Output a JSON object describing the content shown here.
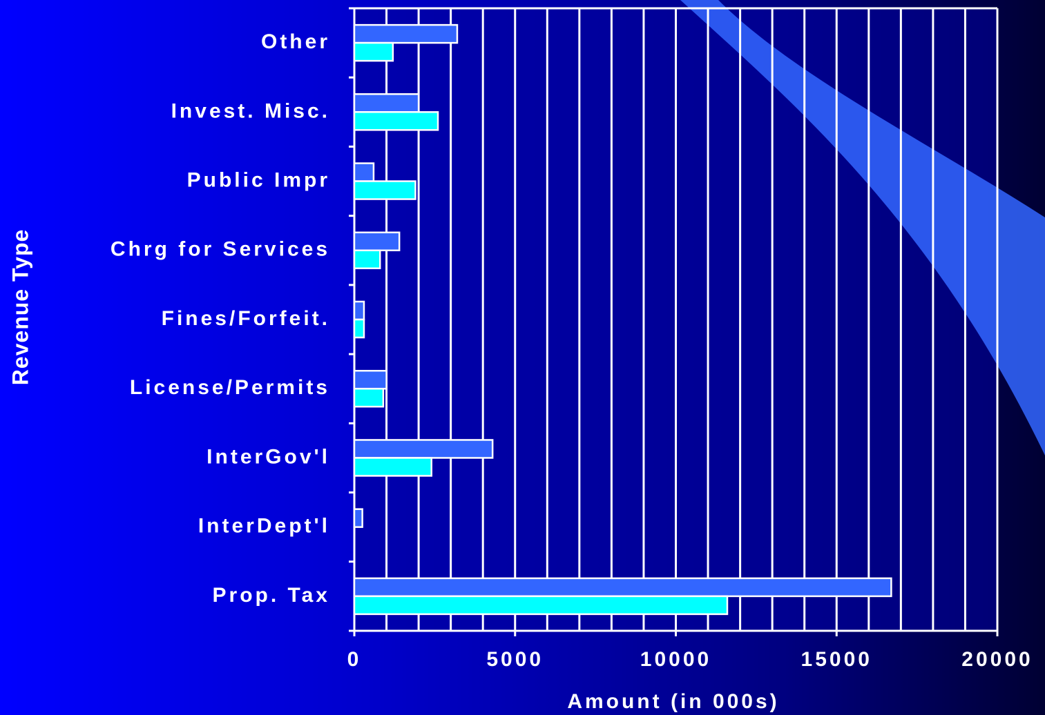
{
  "chart_data": {
    "type": "barh",
    "xlabel": "Amount (in 000s)",
    "ylabel": "Revenue Type",
    "categories": [
      "Other",
      "Invest. Misc.",
      "Public Impr",
      "Chrg for Services",
      "Fines/Forfeit.",
      "License/Permits",
      "InterGov'l",
      "InterDept'l",
      "Prop. Tax"
    ],
    "series": [
      {
        "color": "#3366ff",
        "values": [
          3200,
          2000,
          600,
          1400,
          300,
          1000,
          4300,
          250,
          16700
        ]
      },
      {
        "color": "#00ffff",
        "values": [
          1200,
          2600,
          1900,
          800,
          300,
          900,
          2400,
          null,
          11600
        ]
      }
    ],
    "xlim": [
      0,
      20000
    ],
    "xticks": [
      0,
      5000,
      10000,
      15000,
      20000
    ],
    "xgrid": [
      1000,
      2000,
      3000,
      4000,
      5000,
      6000,
      7000,
      8000,
      9000,
      10000,
      11000,
      12000,
      13000,
      14000,
      15000,
      16000,
      17000,
      18000,
      19000,
      20000
    ]
  }
}
